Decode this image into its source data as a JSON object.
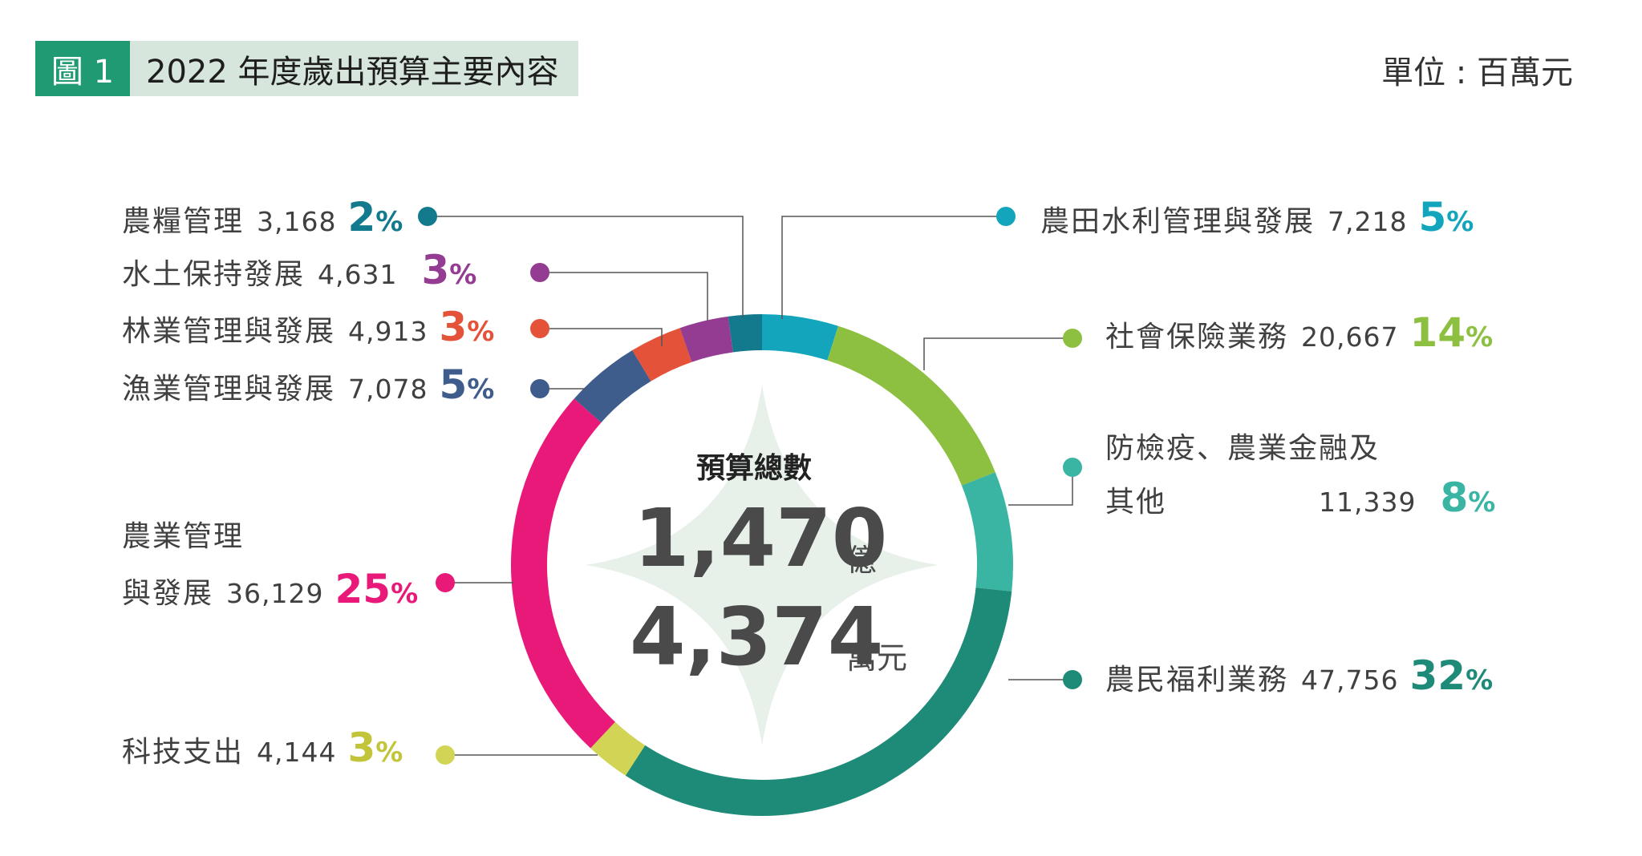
{
  "header": {
    "figure_label": "圖 1",
    "title": "2022 年度歲出預算主要內容",
    "unit": "單位 : 百萬元"
  },
  "center": {
    "title": "預算總數",
    "line1_value": "1,470",
    "line1_unit": "億",
    "line2_value": "4,374",
    "line2_unit": "萬元"
  },
  "chart_data": {
    "type": "pie",
    "donut": true,
    "title": "2022 年度歲出預算主要內容",
    "unit": "百萬元",
    "slices": [
      {
        "name": "農田水利管理與發展",
        "value": 7218,
        "percent": 5,
        "color": "#12a5bb"
      },
      {
        "name": "社會保險業務",
        "value": 20667,
        "percent": 14,
        "color": "#8dc041"
      },
      {
        "name": "防檢疫、農業金融及其他",
        "value": 11339,
        "percent": 8,
        "color": "#3ab5a3"
      },
      {
        "name": "農民福利業務",
        "value": 47756,
        "percent": 32,
        "color": "#1e8a78"
      },
      {
        "name": "科技支出",
        "value": 4144,
        "percent": 3,
        "color": "#d1d454"
      },
      {
        "name": "農業管理與發展",
        "value": 36129,
        "percent": 25,
        "color": "#e9197a"
      },
      {
        "name": "漁業管理與發展",
        "value": 7078,
        "percent": 5,
        "color": "#3e5c8c"
      },
      {
        "name": "林業管理與發展",
        "value": 4913,
        "percent": 3,
        "color": "#e4523a"
      },
      {
        "name": "水土保持發展",
        "value": 4631,
        "percent": 3,
        "color": "#943c92"
      },
      {
        "name": "農糧管理",
        "value": 3168,
        "percent": 2,
        "color": "#127a8c"
      }
    ]
  },
  "labels": {
    "irrigation": {
      "name": "農田水利管理與發展",
      "value": "7,218",
      "pct": "5"
    },
    "insurance": {
      "name": "社會保險業務",
      "value": "20,667",
      "pct": "14"
    },
    "quarantine": {
      "name_line1": "防檢疫、農業金融及",
      "name_line2": "其他",
      "value": "11,339",
      "pct": "8"
    },
    "welfare": {
      "name": "農民福利業務",
      "value": "47,756",
      "pct": "32"
    },
    "tech": {
      "name": "科技支出",
      "value": "4,144",
      "pct": "3"
    },
    "agri": {
      "name_line1": "農業管理",
      "name_line2": "與發展",
      "value": "36,129",
      "pct": "25"
    },
    "fishery": {
      "name": "漁業管理與發展",
      "value": "7,078",
      "pct": "5"
    },
    "forestry": {
      "name": "林業管理與發展",
      "value": "4,913",
      "pct": "3"
    },
    "soil": {
      "name": "水土保持發展",
      "value": "4,631",
      "pct": "3"
    },
    "grain": {
      "name": "農糧管理",
      "value": "3,168",
      "pct": "2"
    },
    "percent_sign": "%"
  }
}
